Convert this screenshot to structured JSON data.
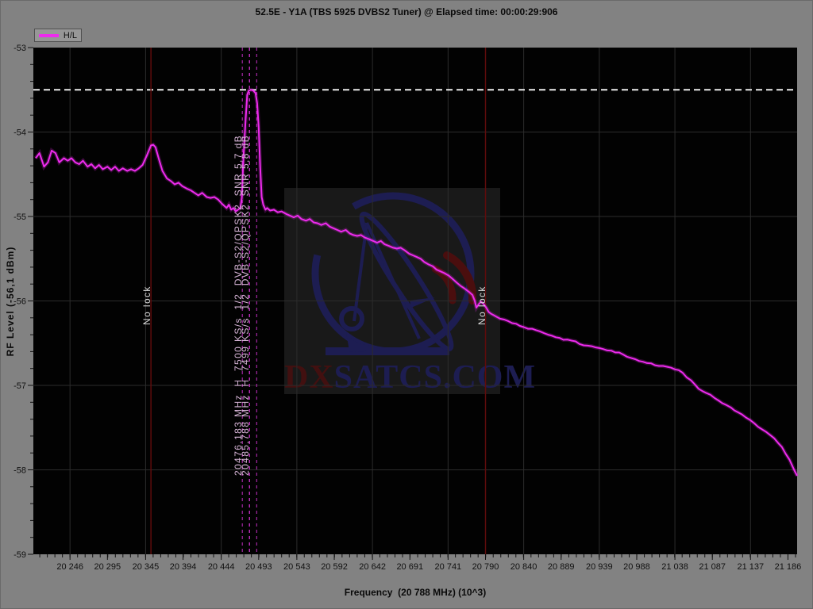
{
  "window": {
    "title": "52.5E - Y1A (TBS 5925 DVBS2 Tuner) @ Elapsed time: 00:00:29:906"
  },
  "legend": {
    "label": "H/L"
  },
  "axes": {
    "y_title": "RF Level (-56,1 dBm)",
    "x_title": "Frequency  (20 788 MHz) (10^3)"
  },
  "watermark": {
    "dx": "DX",
    "rest": "SATCS.COM"
  },
  "colors": {
    "background": "#828282",
    "plot_background": "#020202",
    "trace": "#ee2bee",
    "grid": "#2c2c2c",
    "tick": "#111111",
    "threshold": "#ececec",
    "event_line": "#5e0c0c",
    "transponder_line": "#c32fc3",
    "transponder_label": "#d6b4d6",
    "no_lock_label": "#dcdcdc",
    "watermark_navy": "#1d1d52",
    "watermark_red": "#421010"
  },
  "chart_data": {
    "type": "line",
    "title": "52.5E - Y1A (TBS 5925 DVBS2 Tuner) @ Elapsed time: 00:00:29:906",
    "xlabel": "Frequency  (20 788 MHz) (10^3)",
    "ylabel": "RF Level (-56,1 dBm)",
    "xlim": [
      20198,
      21198
    ],
    "ylim": [
      -59,
      -53
    ],
    "grid": "on",
    "legend_position": "top-left",
    "x_tick_values": [
      20246,
      20295,
      20345,
      20394,
      20444,
      20493,
      20543,
      20592,
      20642,
      20691,
      20741,
      20790,
      20840,
      20889,
      20939,
      20988,
      21038,
      21087,
      21137,
      21186
    ],
    "x_tick_labels": [
      "20 246",
      "20 295",
      "20 345",
      "20 394",
      "20 444",
      "20 493",
      "20 543",
      "20 592",
      "20 642",
      "20 691",
      "20 741",
      "20 790",
      "20 840",
      "20 889",
      "20 939",
      "20 988",
      "21 038",
      "21 087",
      "21 137",
      "21 186"
    ],
    "y_tick_values": [
      -53,
      -54,
      -55,
      -56,
      -57,
      -58,
      -59
    ],
    "reference_line": {
      "level_dbm": -53.5,
      "style": "dashed"
    },
    "event_markers": [
      {
        "freq_mhz": 20352,
        "label": "No lock"
      },
      {
        "freq_mhz": 20790,
        "label": "No lock"
      }
    ],
    "transponder_markers": [
      {
        "freq_mhz": 20476.183,
        "half_bandwidth_mhz": 4.6,
        "label": "20476,183 MHz  H  7500 KS/s  1/2  DVB-S2/QPSK2  SNR 5,7 dB"
      },
      {
        "freq_mhz": 20485.788,
        "half_bandwidth_mhz": 4.6,
        "label": "20485,788 MHz  H  7499 KS/s  1/2  DVB-S2/QPSK2  SNR 5,8 dB"
      }
    ],
    "series": [
      {
        "name": "H/L",
        "color": "#ee2bee",
        "points": [
          [
            20201,
            -54.31
          ],
          [
            20206,
            -54.25
          ],
          [
            20212,
            -54.41
          ],
          [
            20217,
            -54.36
          ],
          [
            20222,
            -54.22
          ],
          [
            20227,
            -54.25
          ],
          [
            20232,
            -54.36
          ],
          [
            20238,
            -54.31
          ],
          [
            20243,
            -54.34
          ],
          [
            20248,
            -54.31
          ],
          [
            20253,
            -54.36
          ],
          [
            20258,
            -54.38
          ],
          [
            20263,
            -54.34
          ],
          [
            20269,
            -54.41
          ],
          [
            20274,
            -54.38
          ],
          [
            20279,
            -54.43
          ],
          [
            20284,
            -54.39
          ],
          [
            20289,
            -54.44
          ],
          [
            20295,
            -54.41
          ],
          [
            20300,
            -54.45
          ],
          [
            20305,
            -54.41
          ],
          [
            20310,
            -54.46
          ],
          [
            20315,
            -54.43
          ],
          [
            20321,
            -54.46
          ],
          [
            20326,
            -54.44
          ],
          [
            20331,
            -54.46
          ],
          [
            20336,
            -54.43
          ],
          [
            20341,
            -54.39
          ],
          [
            20347,
            -54.27
          ],
          [
            20352,
            -54.16
          ],
          [
            20355,
            -54.15
          ],
          [
            20358,
            -54.18
          ],
          [
            20362,
            -54.31
          ],
          [
            20367,
            -54.46
          ],
          [
            20373,
            -54.55
          ],
          [
            20378,
            -54.58
          ],
          [
            20383,
            -54.62
          ],
          [
            20388,
            -54.6
          ],
          [
            20393,
            -54.64
          ],
          [
            20399,
            -54.67
          ],
          [
            20404,
            -54.69
          ],
          [
            20409,
            -54.72
          ],
          [
            20414,
            -54.75
          ],
          [
            20419,
            -54.72
          ],
          [
            20425,
            -54.77
          ],
          [
            20430,
            -54.78
          ],
          [
            20435,
            -54.77
          ],
          [
            20440,
            -54.8
          ],
          [
            20445,
            -54.85
          ],
          [
            20451,
            -54.9
          ],
          [
            20454,
            -54.86
          ],
          [
            20457,
            -54.92
          ],
          [
            20460,
            -54.9
          ],
          [
            20463,
            -54.94
          ],
          [
            20466,
            -54.92
          ],
          [
            20469,
            -54.9
          ],
          [
            20471,
            -54.78
          ],
          [
            20473,
            -54.31
          ],
          [
            20476,
            -53.85
          ],
          [
            20478,
            -53.56
          ],
          [
            20480,
            -53.51
          ],
          [
            20483,
            -53.5
          ],
          [
            20486,
            -53.51
          ],
          [
            20489,
            -53.54
          ],
          [
            20491,
            -53.66
          ],
          [
            20493,
            -53.94
          ],
          [
            20495,
            -54.41
          ],
          [
            20497,
            -54.77
          ],
          [
            20499,
            -54.86
          ],
          [
            20502,
            -54.92
          ],
          [
            20504,
            -54.9
          ],
          [
            20508,
            -54.93
          ],
          [
            20513,
            -54.92
          ],
          [
            20518,
            -54.95
          ],
          [
            20523,
            -54.94
          ],
          [
            20529,
            -54.97
          ],
          [
            20534,
            -54.99
          ],
          [
            20539,
            -55.01
          ],
          [
            20544,
            -54.99
          ],
          [
            20549,
            -55.03
          ],
          [
            20555,
            -55.05
          ],
          [
            20560,
            -55.03
          ],
          [
            20565,
            -55.07
          ],
          [
            20570,
            -55.08
          ],
          [
            20575,
            -55.1
          ],
          [
            20581,
            -55.08
          ],
          [
            20586,
            -55.12
          ],
          [
            20591,
            -55.14
          ],
          [
            20596,
            -55.16
          ],
          [
            20601,
            -55.18
          ],
          [
            20607,
            -55.16
          ],
          [
            20612,
            -55.2
          ],
          [
            20617,
            -55.22
          ],
          [
            20622,
            -55.23
          ],
          [
            20627,
            -55.22
          ],
          [
            20632,
            -55.25
          ],
          [
            20638,
            -55.27
          ],
          [
            20643,
            -55.29
          ],
          [
            20648,
            -55.31
          ],
          [
            20653,
            -55.29
          ],
          [
            20658,
            -55.33
          ],
          [
            20664,
            -55.35
          ],
          [
            20669,
            -55.37
          ],
          [
            20674,
            -55.38
          ],
          [
            20679,
            -55.37
          ],
          [
            20684,
            -55.4
          ],
          [
            20690,
            -55.44
          ],
          [
            20695,
            -55.46
          ],
          [
            20700,
            -55.48
          ],
          [
            20705,
            -55.5
          ],
          [
            20710,
            -55.54
          ],
          [
            20716,
            -55.57
          ],
          [
            20721,
            -55.59
          ],
          [
            20726,
            -55.63
          ],
          [
            20731,
            -55.65
          ],
          [
            20736,
            -55.67
          ],
          [
            20742,
            -55.7
          ],
          [
            20747,
            -55.74
          ],
          [
            20752,
            -55.78
          ],
          [
            20757,
            -55.82
          ],
          [
            20762,
            -55.85
          ],
          [
            20768,
            -55.89
          ],
          [
            20773,
            -55.93
          ],
          [
            20776,
            -56.0
          ],
          [
            20778,
            -56.08
          ],
          [
            20781,
            -56.04
          ],
          [
            20784,
            -56.01
          ],
          [
            20787,
            -56.03
          ],
          [
            20791,
            -56.08
          ],
          [
            20794,
            -56.13
          ],
          [
            20797,
            -56.15
          ],
          [
            20801,
            -56.17
          ],
          [
            20805,
            -56.19
          ],
          [
            20809,
            -56.21
          ],
          [
            20820,
            -56.24
          ],
          [
            20830,
            -56.27
          ],
          [
            20840,
            -56.31
          ],
          [
            20851,
            -56.33
          ],
          [
            20861,
            -56.36
          ],
          [
            20872,
            -56.4
          ],
          [
            20882,
            -56.43
          ],
          [
            20892,
            -56.46
          ],
          [
            20903,
            -56.47
          ],
          [
            20913,
            -56.51
          ],
          [
            20924,
            -56.53
          ],
          [
            20934,
            -56.55
          ],
          [
            20944,
            -56.57
          ],
          [
            20955,
            -56.59
          ],
          [
            20965,
            -56.61
          ],
          [
            20975,
            -56.66
          ],
          [
            20986,
            -56.69
          ],
          [
            20996,
            -56.72
          ],
          [
            21007,
            -56.74
          ],
          [
            21017,
            -56.77
          ],
          [
            21028,
            -56.78
          ],
          [
            21038,
            -56.81
          ],
          [
            21048,
            -56.85
          ],
          [
            21059,
            -56.94
          ],
          [
            21069,
            -57.04
          ],
          [
            21079,
            -57.09
          ],
          [
            21090,
            -57.15
          ],
          [
            21100,
            -57.21
          ],
          [
            21111,
            -57.26
          ],
          [
            21121,
            -57.32
          ],
          [
            21131,
            -57.38
          ],
          [
            21142,
            -57.45
          ],
          [
            21152,
            -57.52
          ],
          [
            21163,
            -57.59
          ],
          [
            21173,
            -57.68
          ],
          [
            21178,
            -57.73
          ],
          [
            21183,
            -57.81
          ],
          [
            21188,
            -57.88
          ],
          [
            21194,
            -58.0
          ],
          [
            21199,
            -58.07
          ]
        ]
      }
    ]
  }
}
